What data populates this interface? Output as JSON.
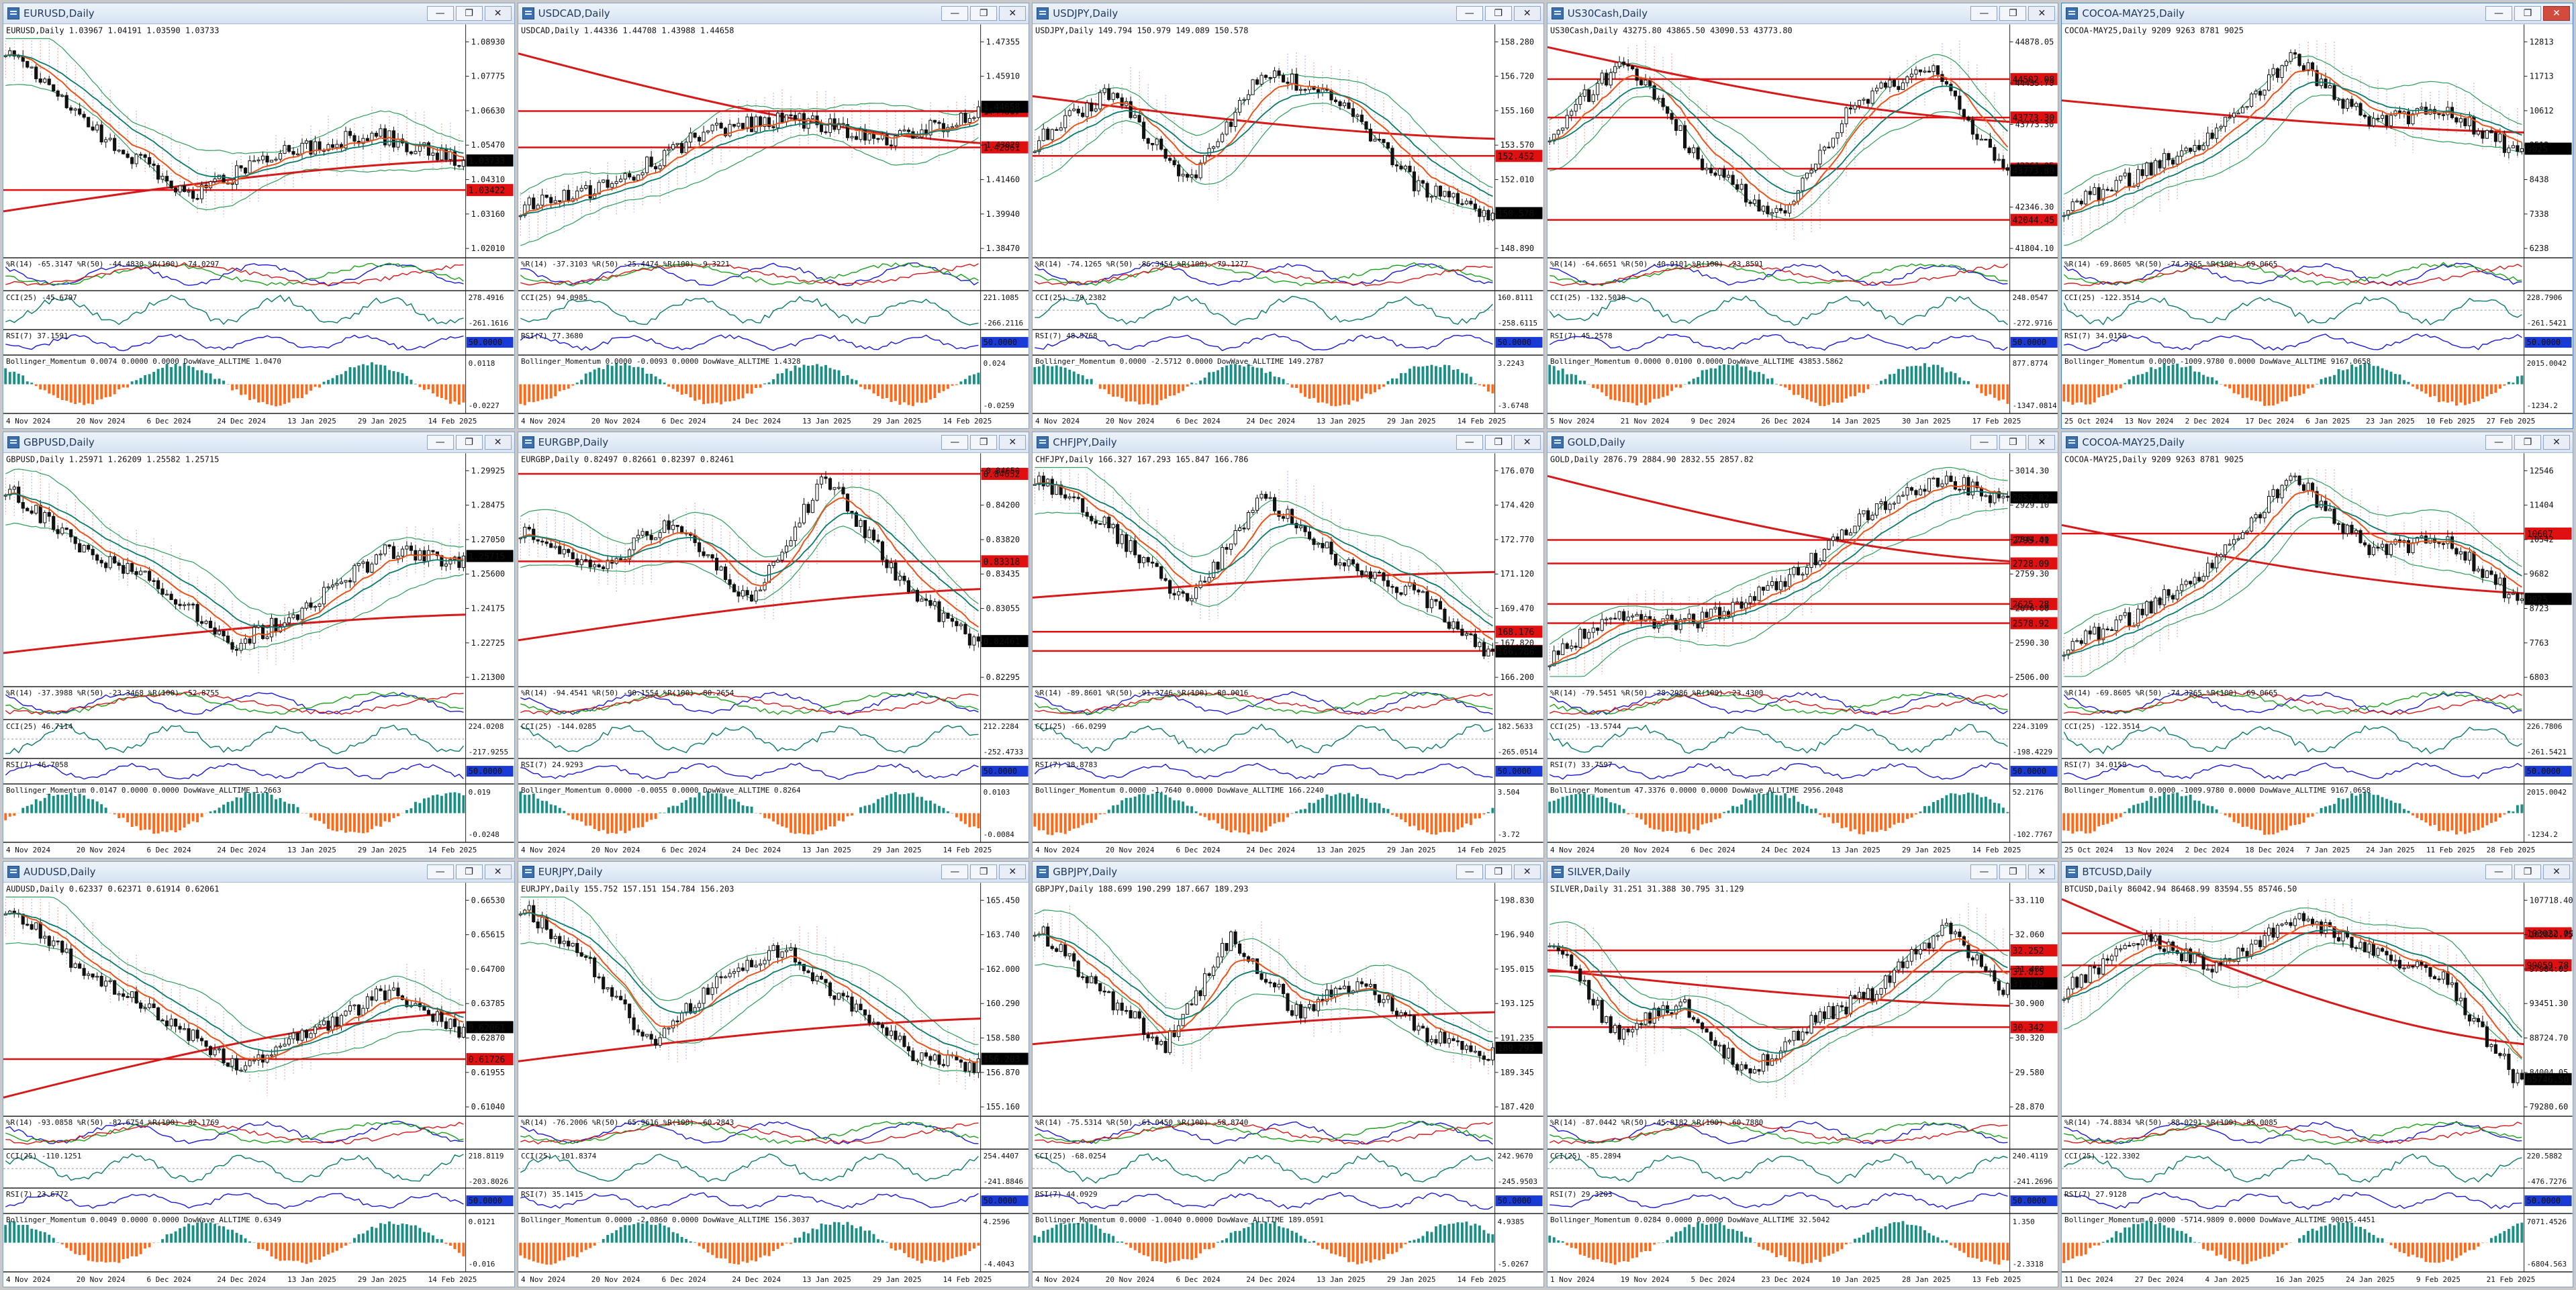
{
  "colors": {
    "ema_fast": "#e8541a",
    "ema_mid": "#0a7a6a",
    "ma_long": "#d61a1a",
    "hline": "#e01010",
    "bb_outer": "#2f9e5a",
    "cloud_red": "#d8433a",
    "cloud_blue": "#5b6fd8",
    "candle": "#111111",
    "hist_green": "#1a8f86",
    "hist_orange": "#ff6a1a",
    "osc_blue": "#1a1ad6",
    "osc_green": "#1aa01a",
    "osc_red": "#d61a1a",
    "price_label": "#000000",
    "level_label": "#e01010"
  },
  "window_buttons": {
    "minimize": "—",
    "restore": "❐",
    "close": "✕"
  },
  "windows": [
    {
      "title": "EURUSD,Daily",
      "header": "EURUSD,Daily  1.03967 1.04191 1.03590 1.03733",
      "seed": 11,
      "trend": [
        0.95,
        0.55,
        0.25,
        0.45,
        0.55,
        0.4
      ],
      "ma_long": [
        0.18,
        0.42
      ],
      "price_ticks": [
        "1.08930",
        "1.07775",
        "1.06630",
        "1.05470",
        "1.04310",
        "1.03160",
        "1.02010"
      ],
      "price_tag": "1.03733",
      "level_tags": [
        "1.03422"
      ],
      "level_pos": [
        0.72
      ],
      "wpr": "%R(14) -65.3147  %R(50) -44.4830  %R(100) -74.0297",
      "cci_label": "CCI(25) -45.6797",
      "cci_ticks": [
        "278.4916",
        "-261.1616"
      ],
      "rsi_label": "RSI(7) 37.1591",
      "rsi_tag": "50.0000",
      "mom_label": "Bollinger_Momentum 0.0074 0.0000 0.0000  DowWave_ALLTIME 1.0470",
      "mom_ticks": [
        "0.0118",
        "-0.0227"
      ],
      "dates": [
        "4 Nov 2024",
        "20 Nov 2024",
        "6 Dec 2024",
        "24 Dec 2024",
        "13 Jan 2025",
        "29 Jan 2025",
        "14 Feb 2025"
      ]
    },
    {
      "title": "USDCAD,Daily",
      "header": "USDCAD,Daily  1.44336 1.44708 1.43988 1.44658",
      "seed": 23,
      "trend": [
        0.2,
        0.3,
        0.55,
        0.62,
        0.5,
        0.65
      ],
      "ma_long": [
        0.92,
        0.5
      ],
      "price_ticks": [
        "1.47355",
        "1.45910",
        "1.44460",
        "1.43020",
        "1.41460",
        "1.39940",
        "1.38470"
      ],
      "price_tag": "1.44658",
      "level_tags": [
        "1.44867",
        "1.42861"
      ],
      "level_pos": [
        0.35,
        0.52
      ],
      "wpr": "%R(14) -37.3103  %R(50) -25.4474  %R(100) -9.3221",
      "cci_label": "CCI(25) 94.0985",
      "cci_ticks": [
        "221.1085",
        "-266.2116"
      ],
      "rsi_label": "RSI(7) 77.3680",
      "rsi_tag": "50.0000",
      "mom_label": "Bollinger_Momentum 0.0000 -0.0093 0.0000  DowWave_ALLTIME 1.4328",
      "mom_ticks": [
        "0.024",
        "-0.0259"
      ],
      "dates": [
        "4 Nov 2024",
        "20 Nov 2024",
        "6 Dec 2024",
        "24 Dec 2024",
        "13 Jan 2025",
        "29 Jan 2025",
        "14 Feb 2025"
      ]
    },
    {
      "title": "USDJPY,Daily",
      "header": "USDJPY,Daily  149.794 150.979 149.089 150.578",
      "seed": 37,
      "trend": [
        0.5,
        0.75,
        0.3,
        0.85,
        0.7,
        0.3,
        0.15
      ],
      "ma_long": [
        0.72,
        0.52
      ],
      "price_ticks": [
        "158.280",
        "156.720",
        "155.160",
        "153.570",
        "152.010",
        "150.450",
        "148.890"
      ],
      "price_tag": "150.578",
      "level_tags": [
        "152.452"
      ],
      "level_pos": [
        0.56
      ],
      "wpr": "%R(14) -74.1265  %R(50) -86.3454  %R(100) -79.1277",
      "cci_label": "CCI(25) -79.2382",
      "cci_ticks": [
        "160.8111",
        "-258.6115"
      ],
      "rsi_label": "RSI(7) 48.5768",
      "rsi_tag": "50.0000",
      "mom_label": "Bollinger_Momentum 0.0000 -2.5712 0.0000  DowWave_ALLTIME 149.2787",
      "mom_ticks": [
        "3.2243",
        "-3.6748"
      ],
      "dates": [
        "4 Nov 2024",
        "20 Nov 2024",
        "6 Dec 2024",
        "24 Dec 2024",
        "13 Jan 2025",
        "29 Jan 2025",
        "14 Feb 2025"
      ]
    },
    {
      "title": "US30Cash,Daily",
      "header": "US30Cash,Daily  43275.80 43865.50 43090.53 43773.80",
      "seed": 41,
      "trend": [
        0.55,
        0.9,
        0.4,
        0.15,
        0.7,
        0.85,
        0.35
      ],
      "ma_long": [
        0.95,
        0.6
      ],
      "price_ticks": [
        "44878.05",
        "44435.70",
        "43773.30",
        "43361.05",
        "42346.30",
        "41804.10"
      ],
      "price_tag": "43773.80",
      "level_tags": [
        "44502.08",
        "43773.30",
        "43013.65",
        "42044.45"
      ],
      "level_pos": [
        0.2,
        0.38,
        0.62,
        0.86
      ],
      "wpr": "%R(14) -64.6651  %R(50) -40.9101  %R(100) -23.8591",
      "cci_label": "CCI(25) -132.5038",
      "cci_ticks": [
        "248.0547",
        "-272.9716"
      ],
      "rsi_label": "RSI(7) 45.2578",
      "rsi_tag": "50.0000",
      "mom_label": "Bollinger_Momentum 0.0000 0.0100 0.0000  DowWave_ALLTIME 43853.5862",
      "mom_ticks": [
        "877.8774",
        "-1347.0814"
      ],
      "dates": [
        "5 Nov 2024",
        "21 Nov 2024",
        "9 Dec 2024",
        "26 Dec 2024",
        "14 Jan 2025",
        "30 Jan 2025",
        "17 Feb 2025"
      ]
    },
    {
      "title": "COCOA-MAY25,Daily",
      "header": "COCOA-MAY25,Daily  9209 9263 8781 9025",
      "seed": 53,
      "trend": [
        0.2,
        0.35,
        0.55,
        0.9,
        0.6,
        0.65,
        0.45
      ],
      "ma_long": [
        0.7,
        0.55
      ],
      "price_ticks": [
        "12813",
        "11713",
        "10612",
        "9512",
        "8438",
        "7338",
        "6238"
      ],
      "price_tag": "9025",
      "level_tags": [],
      "level_pos": [],
      "wpr": "%R(14) -69.8605  %R(50) -74.3265  %R(100) -69.0665",
      "cci_label": "CCI(25) -122.3514",
      "cci_ticks": [
        "228.7906",
        "-261.5421"
      ],
      "rsi_label": "RSI(7) 34.0159",
      "rsi_tag": "50.0000",
      "mom_label": "Bollinger_Momentum 0.0000 -1009.9780 0.0000  DowWave_ALLTIME 9167.0658",
      "mom_ticks": [
        "2015.0042",
        "-1234.2"
      ],
      "dates": [
        "25 Oct 2024",
        "13 Nov 2024",
        "2 Dec 2024",
        "17 Dec 2024",
        "6 Jan 2025",
        "23 Jan 2025",
        "10 Feb 2025",
        "27 Feb 2025"
      ]
    },
    {
      "title": "GBPUSD,Daily",
      "header": "GBPUSD,Daily  1.25971 1.26209 1.25582 1.25715",
      "seed": 61,
      "trend": [
        0.9,
        0.6,
        0.45,
        0.15,
        0.35,
        0.6,
        0.55
      ],
      "ma_long": [
        0.12,
        0.3
      ],
      "price_ticks": [
        "1.29925",
        "1.28475",
        "1.27050",
        "1.25600",
        "1.24175",
        "1.22725",
        "1.21300"
      ],
      "price_tag": "1.25715",
      "level_tags": [],
      "level_pos": [],
      "wpr": "%R(14) -37.3988  %R(50) -23.3468  %R(100) -52.8755",
      "cci_label": "CCI(25) 46.7114",
      "cci_ticks": [
        "224.0208",
        "-217.9255"
      ],
      "rsi_label": "RSI(7) 46.7058",
      "rsi_tag": "50.0000",
      "mom_label": "Bollinger_Momentum 0.0147 0.0000 0.0000  DowWave_ALLTIME 1.2663",
      "mom_ticks": [
        "0.019",
        "-0.0248"
      ],
      "dates": [
        "4 Nov 2024",
        "20 Nov 2024",
        "6 Dec 2024",
        "24 Dec 2024",
        "13 Jan 2025",
        "29 Jan 2025",
        "14 Feb 2025"
      ]
    },
    {
      "title": "EURGBP,Daily",
      "header": "EURGBP,Daily  0.82497 0.82661 0.82397 0.82461",
      "seed": 71,
      "trend": [
        0.7,
        0.5,
        0.75,
        0.35,
        0.95,
        0.45,
        0.15
      ],
      "ma_long": [
        0.18,
        0.42
      ],
      "price_ticks": [
        "0.84650",
        "0.84200",
        "0.83820",
        "0.83435",
        "0.83055",
        "0.82675",
        "0.82295"
      ],
      "price_tag": "0.82461",
      "level_tags": [
        "0.84652",
        "0.83318"
      ],
      "level_pos": [
        0.04,
        0.45
      ],
      "wpr": "%R(14) -94.4541  %R(50) -90.1554  %R(100) -80.2654",
      "cci_label": "CCI(25) -144.0285",
      "cci_ticks": [
        "212.2284",
        "-252.4733"
      ],
      "rsi_label": "RSI(7) 24.9293",
      "rsi_tag": "50.0000",
      "mom_label": "Bollinger_Momentum 0.0000 -0.0055 0.0000  DowWave_ALLTIME 0.8264",
      "mom_ticks": [
        "0.0103",
        "-0.0084"
      ],
      "dates": [
        "4 Nov 2024",
        "20 Nov 2024",
        "6 Dec 2024",
        "24 Dec 2024",
        "13 Jan 2025",
        "29 Jan 2025",
        "14 Feb 2025"
      ]
    },
    {
      "title": "CHFJPY,Daily",
      "header": "CHFJPY,Daily  166.327 167.293 165.847 166.786",
      "seed": 83,
      "trend": [
        0.95,
        0.7,
        0.35,
        0.85,
        0.55,
        0.4,
        0.1
      ],
      "ma_long": [
        0.38,
        0.5
      ],
      "price_ticks": [
        "176.070",
        "174.420",
        "172.770",
        "171.120",
        "169.470",
        "167.820",
        "166.200"
      ],
      "price_tag": "166.786",
      "level_tags": [
        "168.176",
        "166.996"
      ],
      "level_pos": [
        0.78,
        0.87
      ],
      "wpr": "%R(14) -89.8601  %R(50) -91.3746  %R(100) -80.0016",
      "cci_label": "CCI(25) -66.0299",
      "cci_ticks": [
        "182.5633",
        "-265.0514"
      ],
      "rsi_label": "RSI(7) 38.8783",
      "rsi_tag": "50.0000",
      "mom_label": "Bollinger_Momentum 0.0000 -1.7640 0.0000  DowWave_ALLTIME 166.2240",
      "mom_ticks": [
        "3.504",
        "-3.72"
      ],
      "dates": [
        "4 Nov 2024",
        "20 Nov 2024",
        "6 Dec 2024",
        "24 Dec 2024",
        "13 Jan 2025",
        "29 Jan 2025",
        "14 Feb 2025"
      ]
    },
    {
      "title": "GOLD,Daily",
      "header": "GOLD,Daily  2876.79 2884.90 2832.55 2857.82",
      "seed": 97,
      "trend": [
        0.1,
        0.3,
        0.25,
        0.35,
        0.55,
        0.8,
        0.95,
        0.82
      ],
      "ma_long": [
        0.95,
        0.55
      ],
      "price_ticks": [
        "3014.30",
        "2929.10",
        "2844.00",
        "2759.30",
        "2676.00",
        "2590.30",
        "2506.00"
      ],
      "price_tag": "2857.82",
      "level_tags": [
        "2795.41",
        "2728.09",
        "2625.28",
        "2578.92"
      ],
      "level_pos": [
        0.35,
        0.46,
        0.65,
        0.74
      ],
      "wpr": "%R(14) -79.5451  %R(50) -28.2986  %R(100) -23.4300",
      "cci_label": "CCI(25) -13.5744",
      "cci_ticks": [
        "224.3109",
        "-198.4229"
      ],
      "rsi_label": "RSI(7) 33.7597",
      "rsi_tag": "50.0000",
      "mom_label": "Bollinger_Momentum 47.3376 0.0000 0.0000  DowWave_ALLTIME 2956.2048",
      "mom_ticks": [
        "52.2176",
        "-102.7767"
      ],
      "dates": [
        "4 Nov 2024",
        "20 Nov 2024",
        "6 Dec 2024",
        "24 Dec 2024",
        "13 Jan 2025",
        "29 Jan 2025",
        "14 Feb 2025"
      ]
    },
    {
      "title": "COCOA-MAY25,Daily",
      "header": "COCOA-MAY25,Daily  9209 9263 8781 9025",
      "seed": 53,
      "trend": [
        0.15,
        0.3,
        0.55,
        0.95,
        0.6,
        0.65,
        0.35
      ],
      "ma_long": [
        0.72,
        0.4
      ],
      "price_ticks": [
        "12546",
        "11404",
        "10542",
        "9682",
        "8723",
        "7763",
        "6803"
      ],
      "price_tag": "9025",
      "level_tags": [
        "10607"
      ],
      "level_pos": [
        0.32
      ],
      "wpr": "%R(14) -69.8605  %R(50) -74.3265  %R(100) -69.0665",
      "cci_label": "CCI(25) -122.3514",
      "cci_ticks": [
        "226.7806",
        "-261.5421"
      ],
      "rsi_label": "RSI(7) 34.0159",
      "rsi_tag": "50.0000",
      "mom_label": "Bollinger_Momentum 0.0000 -1009.9780 0.0000  DowWave_ALLTIME 9167.0658",
      "mom_ticks": [
        "2015.0042",
        "-1234.2"
      ],
      "dates": [
        "25 Oct 2024",
        "13 Nov 2024",
        "2 Dec 2024",
        "18 Dec 2024",
        "7 Jan 2025",
        "24 Jan 2025",
        "11 Feb 2025",
        "28 Feb 2025"
      ]
    },
    {
      "title": "AUDUSD,Daily",
      "header": "AUDUSD,Daily  0.62337 0.62371 0.61914 0.62061",
      "seed": 101,
      "trend": [
        0.95,
        0.65,
        0.45,
        0.2,
        0.35,
        0.55,
        0.35
      ],
      "ma_long": [
        0.05,
        0.45
      ],
      "price_ticks": [
        "0.66530",
        "0.65615",
        "0.64700",
        "0.63785",
        "0.62870",
        "0.61955",
        "0.61040"
      ],
      "price_tag": "0.62061",
      "level_tags": [
        "0.61726"
      ],
      "level_pos": [
        0.77
      ],
      "wpr": "%R(14) -93.0858  %R(50) -82.6754  %R(100) -82.1769",
      "cci_label": "CCI(25) -110.1251",
      "cci_ticks": [
        "218.8119",
        "-203.8026"
      ],
      "rsi_label": "RSI(7) 23.6772",
      "rsi_tag": "50.0000",
      "mom_label": "Bollinger_Momentum 0.0049 0.0000 0.0000  DowWave_ALLTIME 0.6349",
      "mom_ticks": [
        "0.0121",
        "-0.016"
      ],
      "dates": [
        "4 Nov 2024",
        "20 Nov 2024",
        "6 Dec 2024",
        "24 Dec 2024",
        "13 Jan 2025",
        "29 Jan 2025",
        "14 Feb 2025"
      ]
    },
    {
      "title": "EURJPY,Daily",
      "header": "EURJPY,Daily  155.752 157.151 154.784 156.203",
      "seed": 113,
      "trend": [
        0.95,
        0.7,
        0.3,
        0.6,
        0.75,
        0.5,
        0.25,
        0.2
      ],
      "ma_long": [
        0.22,
        0.42
      ],
      "price_ticks": [
        "165.450",
        "163.740",
        "162.000",
        "160.290",
        "158.580",
        "156.870",
        "155.160"
      ],
      "price_tag": "156.203",
      "level_tags": [],
      "level_pos": [],
      "wpr": "%R(14) -76.2006  %R(50) -65.9616  %R(100) -60.2843",
      "cci_label": "CCI(25) -101.8374",
      "cci_ticks": [
        "254.4407",
        "-241.8846"
      ],
      "rsi_label": "RSI(7) 35.1415",
      "rsi_tag": "50.0000",
      "mom_label": "Bollinger_Momentum 0.0000 -2.0860 0.0000  DowWave_ALLTIME 156.3037",
      "mom_ticks": [
        "4.2596",
        "-4.4043"
      ],
      "dates": [
        "4 Nov 2024",
        "20 Nov 2024",
        "6 Dec 2024",
        "24 Dec 2024",
        "13 Jan 2025",
        "29 Jan 2025",
        "14 Feb 2025"
      ]
    },
    {
      "title": "GBPJPY,Daily",
      "header": "GBPJPY,Daily  188.699 190.299 187.667 189.293",
      "seed": 127,
      "trend": [
        0.85,
        0.55,
        0.3,
        0.8,
        0.45,
        0.6,
        0.35,
        0.25
      ],
      "ma_long": [
        0.3,
        0.45
      ],
      "price_ticks": [
        "198.830",
        "196.940",
        "195.015",
        "193.125",
        "191.235",
        "189.345",
        "187.420"
      ],
      "price_tag": "189.293",
      "level_tags": [],
      "level_pos": [],
      "wpr": "%R(14) -75.5314  %R(50) -61.0450  %R(100) -58.8740",
      "cci_label": "CCI(25) -68.0254",
      "cci_ticks": [
        "242.9670",
        "-245.9503"
      ],
      "rsi_label": "RSI(7) 44.0929",
      "rsi_tag": "50.0000",
      "mom_label": "Bollinger_Momentum 0.0000 -1.0040 0.0000  DowWave_ALLTIME 189.0591",
      "mom_ticks": [
        "4.9385",
        "-5.0267"
      ],
      "dates": [
        "4 Nov 2024",
        "20 Nov 2024",
        "6 Dec 2024",
        "24 Dec 2024",
        "13 Jan 2025",
        "29 Jan 2025",
        "14 Feb 2025"
      ]
    },
    {
      "title": "SILVER,Daily",
      "header": "SILVER,Daily  31.251 31.388 30.795 31.129",
      "seed": 139,
      "trend": [
        0.8,
        0.35,
        0.5,
        0.15,
        0.4,
        0.55,
        0.85,
        0.55
      ],
      "ma_long": [
        0.65,
        0.48
      ],
      "price_ticks": [
        "33.110",
        "32.060",
        "31.480",
        "30.900",
        "30.320",
        "29.580",
        "28.870"
      ],
      "price_tag": "31.129",
      "level_tags": [
        "32.252",
        "31.815",
        "30.342"
      ],
      "level_pos": [
        0.26,
        0.36,
        0.62
      ],
      "wpr": "%R(14) -87.0442  %R(50) -45.8182  %R(100) -60.7880",
      "cci_label": "CCI(25) -85.2894",
      "cci_ticks": [
        "240.4119",
        "-241.2696"
      ],
      "rsi_label": "RSI(7) 29.3203",
      "rsi_tag": "50.0000",
      "mom_label": "Bollinger_Momentum 0.0284 0.0000 0.0000  DowWave_ALLTIME 32.5042",
      "mom_ticks": [
        "1.350",
        "-2.3318"
      ],
      "dates": [
        "1 Nov 2024",
        "19 Nov 2024",
        "5 Dec 2024",
        "23 Dec 2024",
        "10 Jan 2025",
        "28 Jan 2025",
        "13 Feb 2025"
      ]
    },
    {
      "title": "BTCUSD,Daily",
      "header": "BTCUSD,Daily  86042.94 86468.99 83594.55 85746.50",
      "seed": 151,
      "trend": [
        0.55,
        0.8,
        0.65,
        0.9,
        0.75,
        0.6,
        0.1
      ],
      "ma_long": [
        0.98,
        0.3
      ],
      "price_ticks": [
        "107718.40",
        "102850.75",
        "97984.05",
        "93451.30",
        "88724.70",
        "84004.05",
        "79280.60"
      ],
      "price_tag": "85746.50",
      "level_tags": [
        "103022.09",
        "99059.78"
      ],
      "level_pos": [
        0.18,
        0.33
      ],
      "wpr": "%R(14) -74.8834  %R(50) -88.0291  %R(100) -85.0085",
      "cci_label": "CCI(25) -122.3302",
      "cci_ticks": [
        "220.5882",
        "-476.7276"
      ],
      "rsi_label": "RSI(7) 27.9128",
      "rsi_tag": "50.0000",
      "mom_label": "Bollinger_Momentum 0.0000 -5714.9809 0.0000  DowWave_ALLTIME 90015.4451",
      "mom_ticks": [
        "7071.4526",
        "-6804.563"
      ],
      "dates": [
        "11 Dec 2024",
        "27 Dec 2024",
        "4 Jan 2025",
        "16 Jan 2025",
        "24 Jan 2025",
        "9 Feb 2025",
        "21 Feb 2025"
      ]
    }
  ]
}
